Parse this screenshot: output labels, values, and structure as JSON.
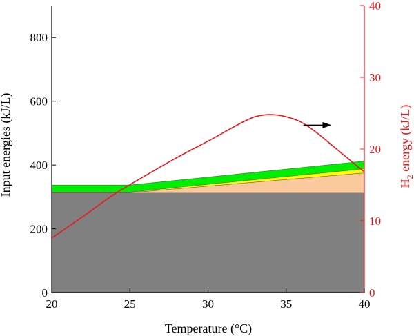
{
  "chart_data": {
    "type": "area",
    "xlabel": "Temperature (°C)",
    "ylabel_left": "Input energies (kJ/L)",
    "ylabel_right_main": "H",
    "ylabel_right_sub": "2",
    "ylabel_right_rest": " energy (kJ/L)",
    "x_ticks": [
      20,
      25,
      30,
      35,
      40
    ],
    "y_left_ticks": [
      0,
      200,
      400,
      600,
      800
    ],
    "y_right_ticks": [
      0,
      10,
      20,
      30,
      40
    ],
    "xlim": [
      20,
      40
    ],
    "ylim_left": [
      0,
      900
    ],
    "ylim_right": [
      0,
      40
    ],
    "colors": {
      "base": "#808080",
      "peach": "#F9C89B",
      "yellow": "#FFFF00",
      "green": "#00EE00",
      "h2_line": "#E41A1C",
      "right_axis": "#E41A1C",
      "left_axis": "#000000",
      "arrow": "#000000"
    },
    "stacked_series": [
      {
        "key": "base",
        "x": [
          20,
          25,
          40
        ],
        "lower": [
          0,
          0,
          0
        ],
        "upper": [
          313,
          313,
          313
        ]
      },
      {
        "key": "peach",
        "x": [
          20,
          25,
          40
        ],
        "lower": [
          313,
          313,
          313
        ],
        "upper": [
          313,
          313,
          375
        ]
      },
      {
        "key": "yellow",
        "x": [
          20,
          25,
          40
        ],
        "lower": [
          313,
          313,
          375
        ],
        "upper": [
          315,
          315,
          388
        ]
      },
      {
        "key": "green",
        "x": [
          20,
          25,
          40
        ],
        "lower": [
          315,
          315,
          388
        ],
        "upper": [
          337,
          337,
          412
        ]
      }
    ],
    "h2_series": {
      "axis": "right",
      "x": [
        20,
        22,
        24,
        26,
        28,
        30,
        31,
        32,
        33,
        34,
        35,
        36,
        37,
        38,
        39,
        40
      ],
      "y": [
        7.6,
        10.6,
        13.7,
        16.3,
        18.8,
        21.1,
        22.3,
        23.5,
        24.5,
        24.8,
        24.5,
        23.7,
        22.2,
        20.4,
        18.6,
        16.8
      ]
    },
    "arrow": {
      "x_start": 36.1,
      "x_end": 37.9,
      "y_left": 525
    }
  }
}
